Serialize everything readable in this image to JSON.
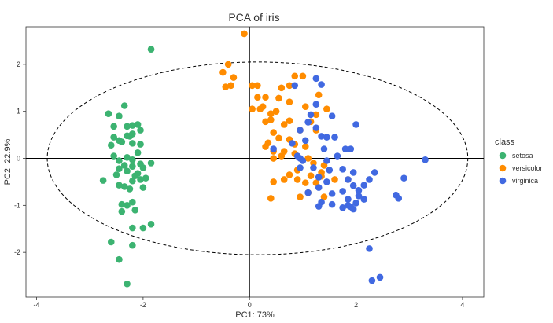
{
  "chart_data": {
    "type": "scatter",
    "title": "PCA of iris",
    "xlabel": "PC1: 73%",
    "ylabel": "PC2: 22.9%",
    "xlim": [
      -4.2,
      4.4
    ],
    "ylim": [
      -2.95,
      2.8
    ],
    "xticks": [
      -4,
      -2,
      0,
      2,
      4
    ],
    "xtick_labels": [
      "-4",
      "-2",
      "0",
      "2",
      "4"
    ],
    "yticks": [
      -2,
      -1,
      0,
      1,
      2
    ],
    "ytick_labels": [
      "-2",
      "-1",
      "0",
      "1",
      "2"
    ],
    "grid": false,
    "reference_lines": {
      "x": 0,
      "y": 0
    },
    "ellipse": {
      "cx": 0.15,
      "cy": 0.0,
      "rx": 3.95,
      "ry": 2.05,
      "style": "dashed"
    },
    "legend": {
      "title": "class",
      "position": "right",
      "entries": [
        {
          "label": "setosa",
          "color": "#3cb371"
        },
        {
          "label": "versicolor",
          "color": "#ff8c00"
        },
        {
          "label": "virginica",
          "color": "#4169e1"
        }
      ]
    },
    "series": [
      {
        "name": "setosa",
        "color": "#3cb371",
        "points": [
          [
            -1.85,
            2.32
          ],
          [
            -2.35,
            1.12
          ],
          [
            -2.65,
            0.95
          ],
          [
            -2.45,
            0.9
          ],
          [
            -2.1,
            0.72
          ],
          [
            -2.2,
            0.7
          ],
          [
            -2.3,
            0.68
          ],
          [
            -2.55,
            0.68
          ],
          [
            -2.05,
            0.6
          ],
          [
            -2.2,
            0.52
          ],
          [
            -2.3,
            0.48
          ],
          [
            -2.25,
            0.47
          ],
          [
            -2.55,
            0.45
          ],
          [
            -2.45,
            0.38
          ],
          [
            -2.4,
            0.35
          ],
          [
            -2.2,
            0.32
          ],
          [
            -2.6,
            0.28
          ],
          [
            -2.05,
            0.3
          ],
          [
            -2.1,
            0.12
          ],
          [
            -2.55,
            0.05
          ],
          [
            -2.3,
            0.02
          ],
          [
            -2.45,
            -0.05
          ],
          [
            -2.2,
            -0.03
          ],
          [
            -1.85,
            -0.1
          ],
          [
            -2.05,
            -0.12
          ],
          [
            -2.35,
            -0.15
          ],
          [
            -2.2,
            -0.17
          ],
          [
            -2.45,
            -0.22
          ],
          [
            -2.0,
            -0.2
          ],
          [
            -2.3,
            -0.27
          ],
          [
            -2.1,
            -0.32
          ],
          [
            -2.5,
            -0.35
          ],
          [
            -2.15,
            -0.37
          ],
          [
            -2.75,
            -0.47
          ],
          [
            -2.45,
            -0.57
          ],
          [
            -2.2,
            -0.48
          ],
          [
            -2.05,
            -0.45
          ],
          [
            -1.95,
            -0.42
          ],
          [
            -2.35,
            -0.6
          ],
          [
            -2.0,
            -0.62
          ],
          [
            -2.25,
            -0.65
          ],
          [
            -2.2,
            -0.93
          ],
          [
            -2.4,
            -0.98
          ],
          [
            -2.15,
            -1.1
          ],
          [
            -2.4,
            -1.13
          ],
          [
            -2.3,
            -1.0
          ],
          [
            -2.0,
            -1.48
          ],
          [
            -2.2,
            -1.48
          ],
          [
            -1.85,
            -1.4
          ],
          [
            -2.6,
            -1.78
          ],
          [
            -2.2,
            -1.85
          ],
          [
            -2.45,
            -2.15
          ],
          [
            -2.3,
            -2.67
          ]
        ]
      },
      {
        "name": "versicolor",
        "color": "#ff8c00",
        "points": [
          [
            -0.1,
            2.65
          ],
          [
            -0.4,
            2.0
          ],
          [
            -0.5,
            1.83
          ],
          [
            -0.3,
            1.72
          ],
          [
            1.0,
            1.75
          ],
          [
            0.85,
            1.75
          ],
          [
            0.6,
            1.5
          ],
          [
            0.75,
            1.55
          ],
          [
            0.05,
            1.55
          ],
          [
            0.15,
            1.55
          ],
          [
            0.55,
            1.28
          ],
          [
            1.3,
            1.35
          ],
          [
            0.15,
            1.3
          ],
          [
            -0.45,
            1.52
          ],
          [
            -0.35,
            1.55
          ],
          [
            0.75,
            1.2
          ],
          [
            1.05,
            1.1
          ],
          [
            0.2,
            1.05
          ],
          [
            0.3,
            1.3
          ],
          [
            0.25,
            1.1
          ],
          [
            0.05,
            1.05
          ],
          [
            0.5,
            1.0
          ],
          [
            0.4,
            0.95
          ],
          [
            1.45,
            1.05
          ],
          [
            1.25,
            0.93
          ],
          [
            0.4,
            0.82
          ],
          [
            0.75,
            0.8
          ],
          [
            0.3,
            0.78
          ],
          [
            0.65,
            0.72
          ],
          [
            0.45,
            0.55
          ],
          [
            1.15,
            0.78
          ],
          [
            0.55,
            0.43
          ],
          [
            0.35,
            0.33
          ],
          [
            0.85,
            0.3
          ],
          [
            0.75,
            0.4
          ],
          [
            0.95,
            0.6
          ],
          [
            1.05,
            0.25
          ],
          [
            0.3,
            0.25
          ],
          [
            0.45,
            0.15
          ],
          [
            0.65,
            0.15
          ],
          [
            0.6,
            0.05
          ],
          [
            0.85,
            0.1
          ],
          [
            1.25,
            0.6
          ],
          [
            0.45,
            0.0
          ],
          [
            1.1,
            0.0
          ],
          [
            1.2,
            -0.1
          ],
          [
            1.4,
            -0.15
          ],
          [
            0.9,
            -0.25
          ],
          [
            1.35,
            -0.3
          ],
          [
            1.15,
            -0.37
          ],
          [
            1.35,
            -0.38
          ],
          [
            0.75,
            -0.35
          ],
          [
            0.65,
            -0.45
          ],
          [
            0.9,
            -0.45
          ],
          [
            0.45,
            -0.5
          ],
          [
            1.05,
            -0.52
          ],
          [
            1.25,
            -0.52
          ],
          [
            1.6,
            -0.45
          ],
          [
            1.85,
            -0.45
          ],
          [
            0.95,
            -0.82
          ],
          [
            1.4,
            -0.82
          ],
          [
            0.4,
            -0.85
          ],
          [
            1.1,
            -0.73
          ]
        ]
      },
      {
        "name": "virginica",
        "color": "#4169e1",
        "points": [
          [
            1.25,
            1.7
          ],
          [
            1.35,
            1.57
          ],
          [
            0.85,
            1.55
          ],
          [
            1.25,
            1.15
          ],
          [
            1.15,
            0.93
          ],
          [
            1.55,
            0.9
          ],
          [
            2.0,
            0.72
          ],
          [
            1.1,
            0.77
          ],
          [
            0.95,
            0.6
          ],
          [
            1.25,
            0.65
          ],
          [
            1.45,
            0.45
          ],
          [
            1.6,
            0.45
          ],
          [
            1.35,
            0.47
          ],
          [
            1.05,
            0.38
          ],
          [
            0.8,
            0.32
          ],
          [
            1.9,
            0.2
          ],
          [
            1.8,
            0.2
          ],
          [
            1.4,
            0.2
          ],
          [
            0.45,
            0.2
          ],
          [
            1.65,
            0.05
          ],
          [
            0.9,
            0.05
          ],
          [
            0.95,
            0.0
          ],
          [
            1.0,
            -0.05
          ],
          [
            1.45,
            -0.05
          ],
          [
            3.3,
            -0.03
          ],
          [
            1.2,
            -0.2
          ],
          [
            0.95,
            -0.2
          ],
          [
            1.75,
            -0.23
          ],
          [
            1.5,
            -0.25
          ],
          [
            1.95,
            -0.3
          ],
          [
            2.35,
            -0.3
          ],
          [
            1.3,
            -0.4
          ],
          [
            2.9,
            -0.42
          ],
          [
            2.25,
            -0.45
          ],
          [
            1.85,
            -0.45
          ],
          [
            1.45,
            -0.5
          ],
          [
            2.15,
            -0.57
          ],
          [
            1.95,
            -0.58
          ],
          [
            1.3,
            -0.62
          ],
          [
            2.05,
            -0.68
          ],
          [
            1.75,
            -0.7
          ],
          [
            1.1,
            -0.73
          ],
          [
            1.55,
            -0.75
          ],
          [
            2.75,
            -0.78
          ],
          [
            2.05,
            -0.8
          ],
          [
            1.85,
            -0.87
          ],
          [
            2.15,
            -0.87
          ],
          [
            2.8,
            -0.85
          ],
          [
            1.35,
            -0.93
          ],
          [
            2.0,
            -0.95
          ],
          [
            1.55,
            -0.98
          ],
          [
            1.3,
            -1.02
          ],
          [
            1.85,
            -1.0
          ],
          [
            1.75,
            -1.05
          ],
          [
            1.9,
            -1.03
          ],
          [
            1.95,
            -1.08
          ],
          [
            2.25,
            -1.92
          ],
          [
            2.45,
            -2.53
          ],
          [
            2.3,
            -2.6
          ]
        ]
      }
    ]
  }
}
